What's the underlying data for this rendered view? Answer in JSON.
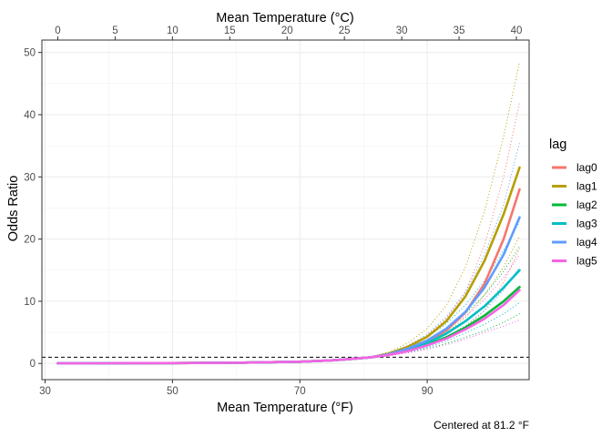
{
  "chart_data": {
    "type": "line",
    "xlabel": "Mean Temperature (°F)",
    "x2label": "Mean Temperature (°C)",
    "ylabel": "Odds Ratio",
    "caption": "Centered at 81.2 °F",
    "legend_title": "lag",
    "legend_position": "right",
    "grid": true,
    "xlim": [
      29.5,
      106
    ],
    "ylim": [
      -2.6,
      52
    ],
    "x_ticks": [
      30,
      50,
      70,
      90
    ],
    "x2_ticks": [
      0,
      5,
      10,
      15,
      20,
      25,
      30,
      35,
      40
    ],
    "y_ticks": [
      0,
      10,
      20,
      30,
      40,
      50
    ],
    "reference_line": {
      "y": 1,
      "style": "dashed"
    },
    "x": [
      32,
      40,
      50,
      60,
      70,
      75,
      78,
      81.2,
      84,
      87,
      90,
      93,
      96,
      99,
      102,
      104.5
    ],
    "series": [
      {
        "name": "lag0",
        "color": "#F8766D",
        "values": [
          0.02,
          0.03,
          0.06,
          0.12,
          0.28,
          0.5,
          0.72,
          1.0,
          1.45,
          2.3,
          3.5,
          5.3,
          8.2,
          12.8,
          20.0,
          28.0
        ],
        "upper": [
          0.04,
          0.05,
          0.09,
          0.18,
          0.35,
          0.6,
          0.82,
          1.0,
          1.65,
          2.8,
          4.5,
          7.2,
          11.5,
          19.0,
          30.0,
          42.0
        ],
        "lower": [
          0.01,
          0.02,
          0.04,
          0.08,
          0.22,
          0.42,
          0.64,
          1.0,
          1.28,
          1.9,
          2.8,
          4.0,
          5.8,
          8.5,
          13.0,
          18.5
        ]
      },
      {
        "name": "lag1",
        "color": "#B79F00",
        "values": [
          0.02,
          0.03,
          0.06,
          0.12,
          0.28,
          0.5,
          0.72,
          1.0,
          1.6,
          2.7,
          4.3,
          6.8,
          10.8,
          16.5,
          24.0,
          31.5
        ],
        "upper": [
          0.04,
          0.05,
          0.09,
          0.18,
          0.35,
          0.6,
          0.82,
          1.0,
          1.85,
          3.3,
          5.6,
          9.3,
          15.5,
          24.5,
          36.5,
          48.5
        ],
        "lower": [
          0.01,
          0.02,
          0.04,
          0.08,
          0.22,
          0.42,
          0.64,
          1.0,
          1.38,
          2.2,
          3.3,
          4.9,
          7.4,
          11.0,
          15.5,
          20.5
        ]
      },
      {
        "name": "lag2",
        "color": "#00BA38",
        "values": [
          0.02,
          0.03,
          0.06,
          0.12,
          0.28,
          0.5,
          0.72,
          1.0,
          1.4,
          2.1,
          3.0,
          4.2,
          5.8,
          7.7,
          10.0,
          12.3
        ],
        "upper": [
          0.04,
          0.05,
          0.09,
          0.18,
          0.35,
          0.6,
          0.82,
          1.0,
          1.6,
          2.6,
          3.8,
          5.6,
          8.0,
          11.0,
          14.8,
          18.8
        ],
        "lower": [
          0.01,
          0.02,
          0.04,
          0.08,
          0.22,
          0.42,
          0.64,
          1.0,
          1.25,
          1.75,
          2.4,
          3.2,
          4.2,
          5.3,
          6.6,
          8.0
        ]
      },
      {
        "name": "lag3",
        "color": "#00BFC4",
        "values": [
          0.02,
          0.03,
          0.06,
          0.12,
          0.28,
          0.5,
          0.72,
          1.0,
          1.45,
          2.2,
          3.3,
          4.8,
          6.8,
          9.2,
          12.2,
          15.0
        ],
        "upper": [
          0.04,
          0.05,
          0.09,
          0.18,
          0.35,
          0.6,
          0.82,
          1.0,
          1.65,
          2.7,
          4.2,
          6.4,
          9.4,
          13.3,
          18.2,
          22.8
        ],
        "lower": [
          0.01,
          0.02,
          0.04,
          0.08,
          0.22,
          0.42,
          0.64,
          1.0,
          1.28,
          1.8,
          2.6,
          3.6,
          4.9,
          6.3,
          8.0,
          9.8
        ]
      },
      {
        "name": "lag4",
        "color": "#619CFF",
        "values": [
          0.02,
          0.03,
          0.06,
          0.12,
          0.28,
          0.5,
          0.72,
          1.0,
          1.5,
          2.4,
          3.7,
          5.6,
          8.3,
          12.2,
          17.5,
          23.5
        ],
        "upper": [
          0.04,
          0.05,
          0.09,
          0.18,
          0.35,
          0.6,
          0.82,
          1.0,
          1.72,
          2.9,
          4.7,
          7.5,
          11.5,
          17.5,
          25.5,
          35.5
        ],
        "lower": [
          0.01,
          0.02,
          0.04,
          0.08,
          0.22,
          0.42,
          0.64,
          1.0,
          1.32,
          2.0,
          2.95,
          4.3,
          6.1,
          8.5,
          11.8,
          15.5
        ]
      },
      {
        "name": "lag5",
        "color": "#F564E3",
        "values": [
          0.02,
          0.03,
          0.06,
          0.12,
          0.28,
          0.5,
          0.72,
          1.0,
          1.38,
          2.0,
          2.9,
          4.0,
          5.5,
          7.2,
          9.4,
          11.8
        ],
        "upper": [
          0.04,
          0.05,
          0.09,
          0.18,
          0.35,
          0.6,
          0.82,
          1.0,
          1.58,
          2.5,
          3.7,
          5.4,
          7.6,
          10.3,
          13.8,
          17.5
        ],
        "lower": [
          0.01,
          0.02,
          0.04,
          0.08,
          0.22,
          0.42,
          0.64,
          1.0,
          1.22,
          1.7,
          2.3,
          3.0,
          3.9,
          5.0,
          6.0,
          7.0
        ]
      }
    ]
  }
}
